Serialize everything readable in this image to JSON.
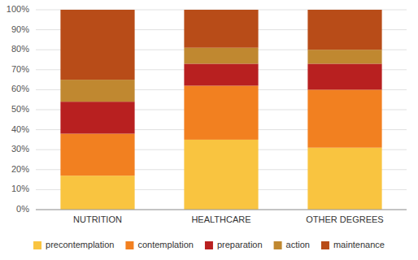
{
  "chart_data": {
    "type": "bar",
    "stacked": true,
    "categories": [
      "NUTRITION",
      "HEALTHCARE",
      "OTHER DEGREES"
    ],
    "series": [
      {
        "name": "precontemplation",
        "color": "#F9C440",
        "values": [
          17,
          35,
          31
        ]
      },
      {
        "name": "contemplation",
        "color": "#F28020",
        "values": [
          21,
          27,
          29
        ]
      },
      {
        "name": "preparation",
        "color": "#B82020",
        "values": [
          16,
          11,
          13
        ]
      },
      {
        "name": "action",
        "color": "#C08830",
        "values": [
          11,
          8,
          7
        ]
      },
      {
        "name": "maintenance",
        "color": "#B84C18",
        "values": [
          35,
          19,
          20
        ]
      }
    ],
    "ylim": [
      0,
      100
    ],
    "yticks": [
      {
        "value": 0,
        "label": "0%"
      },
      {
        "value": 10,
        "label": "10%"
      },
      {
        "value": 20,
        "label": "20%"
      },
      {
        "value": 30,
        "label": "30%"
      },
      {
        "value": 40,
        "label": "40%"
      },
      {
        "value": 50,
        "label": "50%"
      },
      {
        "value": 60,
        "label": "60%"
      },
      {
        "value": 70,
        "label": "70%"
      },
      {
        "value": 80,
        "label": "80%"
      },
      {
        "value": 90,
        "label": "90%"
      },
      {
        "value": 100,
        "label": "100%"
      }
    ],
    "grid": true,
    "legend": "bottom"
  }
}
